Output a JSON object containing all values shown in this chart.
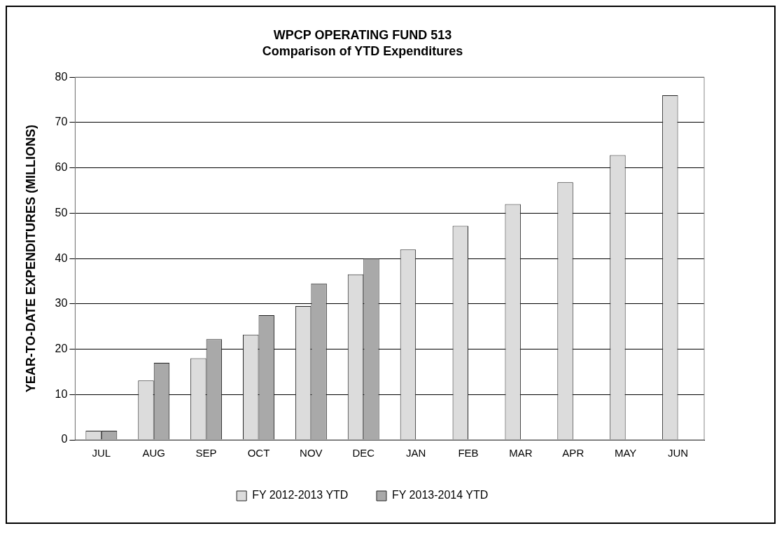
{
  "chart_data": {
    "type": "bar",
    "title": "WPCP OPERATING FUND 513",
    "subtitle": "Comparison of YTD Expenditures",
    "ylabel": "YEAR-TO-DATE EXPENDITURES (MILLIONS)",
    "categories": [
      "JUL",
      "AUG",
      "SEP",
      "OCT",
      "NOV",
      "DEC",
      "JAN",
      "FEB",
      "MAR",
      "APR",
      "MAY",
      "JUN"
    ],
    "series": [
      {
        "name": "FY 2012-2013 YTD",
        "color": "#dcdcdc",
        "values": [
          2,
          13.1,
          18,
          23.2,
          29.5,
          36.5,
          42,
          47.2,
          52,
          56.8,
          62.8,
          76
        ]
      },
      {
        "name": "FY 2013-2014 YTD",
        "color": "#a9a9a9",
        "values": [
          2,
          17,
          22.2,
          27.5,
          34.5,
          40,
          null,
          null,
          null,
          null,
          null,
          null
        ]
      }
    ],
    "ylim": [
      0,
      80
    ],
    "yticks": [
      0,
      10,
      20,
      30,
      40,
      50,
      60,
      70,
      80
    ],
    "grid": "y",
    "legend": "bottom"
  }
}
